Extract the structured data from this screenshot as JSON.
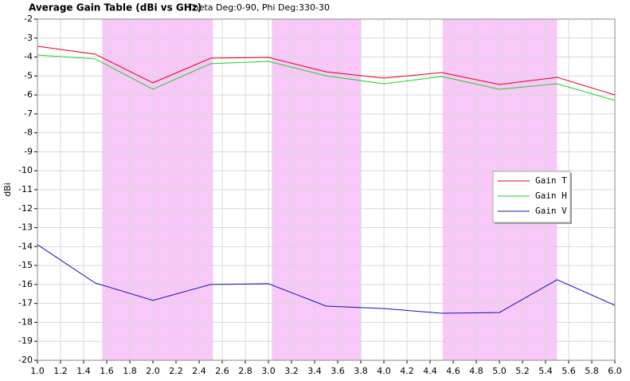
{
  "chart_data": {
    "type": "line",
    "title": "Average Gain Table (dBi vs GHz)",
    "subtitle": "Theta Deg:0-90, Phi Deg:330-30",
    "y_label": "dBi",
    "x": [
      1,
      1.5,
      2,
      2.5,
      3,
      3.5,
      4,
      4.5,
      5,
      5.5,
      6
    ],
    "series": [
      {
        "name": "Gain T",
        "color": "#e00020",
        "values": [
          -3.43,
          -3.85,
          -5.36,
          -4.06,
          -4.02,
          -4.78,
          -5.11,
          -4.82,
          -5.45,
          -5.07,
          -6.0
        ]
      },
      {
        "name": "Gain H",
        "color": "#20d020",
        "values": [
          -3.89,
          -4.1,
          -5.7,
          -4.35,
          -4.23,
          -4.99,
          -5.41,
          -5.03,
          -5.7,
          -5.41,
          -6.29
        ]
      },
      {
        "name": "Gain V",
        "color": "#1010c0",
        "values": [
          -13.9,
          -15.92,
          -16.84,
          -16.0,
          -15.96,
          -17.14,
          -17.27,
          -17.52,
          -17.48,
          -15.75,
          -17.1
        ]
      }
    ],
    "shaded_ranges": [
      [
        1.56,
        2.52
      ],
      [
        3.03,
        3.8
      ],
      [
        4.51,
        5.5
      ]
    ],
    "shade_color": "#f8c8f8",
    "xlim": [
      1,
      6
    ],
    "xticks": [
      {
        "value": 1,
        "label": "1.0"
      },
      1.2,
      1.4,
      1.6,
      1.8,
      {
        "value": 2,
        "label": "2.0"
      },
      2.2,
      2.4,
      2.6,
      2.8,
      {
        "value": 3,
        "label": "3.0"
      },
      3.2,
      3.4,
      3.6,
      3.8,
      {
        "value": 4,
        "label": "4.0"
      },
      4.2,
      4.4,
      4.6,
      4.8,
      {
        "value": 5,
        "label": "5.0"
      },
      5.2,
      5.4,
      5.6,
      5.8,
      {
        "value": 6,
        "label": "6.0"
      }
    ],
    "ylim": [
      -20,
      -2
    ],
    "yticks": [
      -2,
      -3,
      -4,
      -5,
      -6,
      -7,
      -8,
      -9,
      -10,
      -11,
      -12,
      -13,
      -14,
      -15,
      -16,
      -17,
      -18,
      -19,
      -20
    ],
    "grid": true
  }
}
